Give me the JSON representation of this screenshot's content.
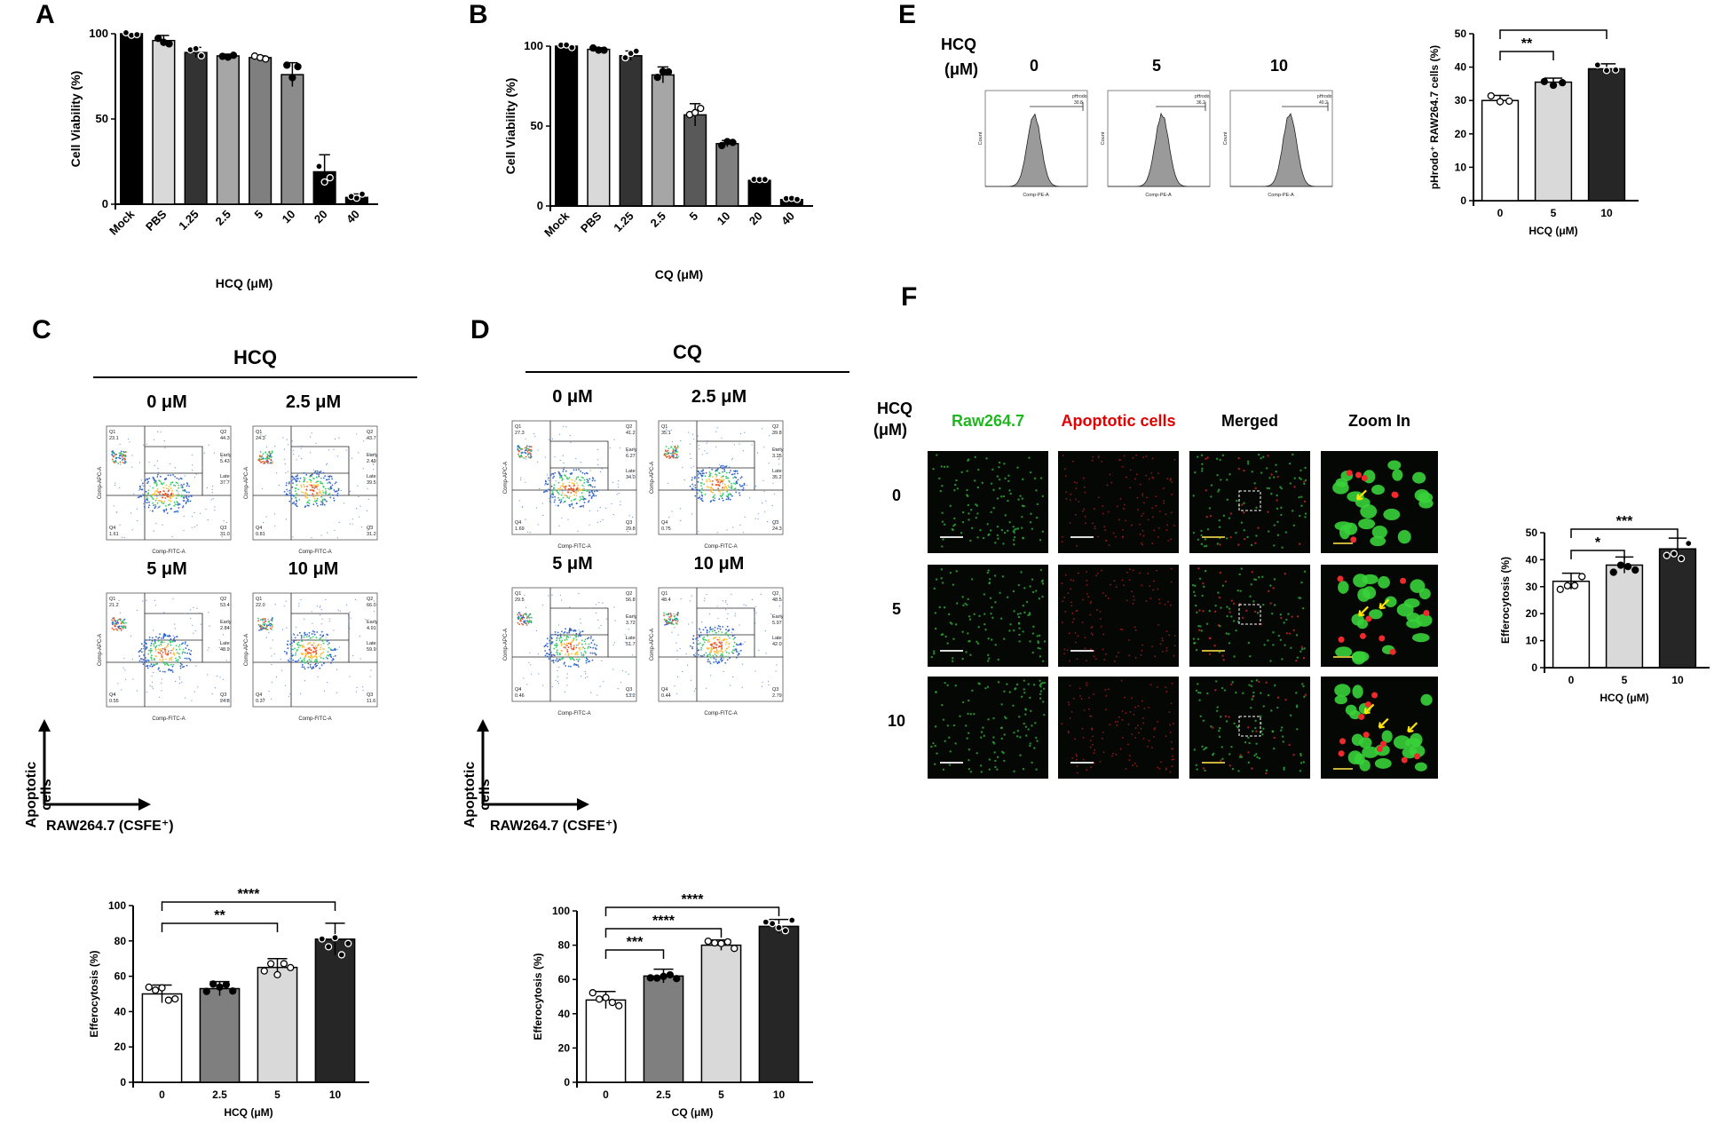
{
  "panels": {
    "A": {
      "letter": "A"
    },
    "B": {
      "letter": "B"
    },
    "C": {
      "letter": "C"
    },
    "D": {
      "letter": "D"
    },
    "E": {
      "letter": "E"
    },
    "F": {
      "letter": "F"
    }
  },
  "chart_data": [
    {
      "id": "A",
      "type": "bar",
      "categories": [
        "Mock",
        "PBS",
        "1.25",
        "2.5",
        "5",
        "10",
        "20",
        "40"
      ],
      "values": [
        100,
        96,
        89,
        87,
        86,
        76,
        19,
        4
      ],
      "errors": [
        0,
        3,
        3,
        1,
        1,
        7,
        10,
        2
      ],
      "colors": [
        "#000000",
        "#d9d9d9",
        "#333333",
        "#a6a6a6",
        "#7f7f7f",
        "#8c8c8c",
        "#000000",
        "#000000"
      ],
      "xlabel": "HCQ (μM)",
      "ylabel": "Cell Viability (%)",
      "ylim": [
        0,
        100
      ],
      "yticks": [
        0,
        50,
        100
      ]
    },
    {
      "id": "B",
      "type": "bar",
      "categories": [
        "Mock",
        "PBS",
        "1.25",
        "2.5",
        "5",
        "10",
        "20",
        "40"
      ],
      "values": [
        100,
        98,
        94,
        82,
        57,
        39,
        16,
        4
      ],
      "errors": [
        0,
        1,
        3,
        5,
        7,
        2,
        1,
        1
      ],
      "colors": [
        "#000000",
        "#d9d9d9",
        "#333333",
        "#a6a6a6",
        "#595959",
        "#7f7f7f",
        "#000000",
        "#000000"
      ],
      "xlabel": "CQ (μM)",
      "ylabel": "Cell Viability (%)",
      "ylim": [
        0,
        100
      ],
      "yticks": [
        0,
        50,
        100
      ]
    },
    {
      "id": "E",
      "type": "bar",
      "categories": [
        "0",
        "5",
        "10"
      ],
      "values": [
        30,
        35.5,
        39.5
      ],
      "errors": [
        1.5,
        1.2,
        1.5
      ],
      "colors": [
        "#ffffff",
        "#d9d9d9",
        "#262626"
      ],
      "xlabel": "HCQ (μM)",
      "ylabel": "pHrodo⁺ RAW264.7 cells (%)",
      "ylim": [
        0,
        50
      ],
      "yticks": [
        0,
        10,
        20,
        30,
        40,
        50
      ],
      "significance": [
        {
          "from": 0,
          "to": 1,
          "label": "**"
        },
        {
          "from": 0,
          "to": 2,
          "label": "***"
        }
      ]
    },
    {
      "id": "F",
      "type": "bar",
      "categories": [
        "0",
        "5",
        "10"
      ],
      "values": [
        32,
        38,
        44
      ],
      "errors": [
        3,
        3,
        4
      ],
      "colors": [
        "#ffffff",
        "#d9d9d9",
        "#262626"
      ],
      "xlabel": "HCQ (μM)",
      "ylabel": "Efferocytosis (%)",
      "ylim": [
        0,
        50
      ],
      "yticks": [
        0,
        10,
        20,
        30,
        40,
        50
      ],
      "significance": [
        {
          "from": 0,
          "to": 1,
          "label": "*"
        },
        {
          "from": 0,
          "to": 2,
          "label": "***"
        }
      ]
    },
    {
      "id": "C",
      "type": "bar",
      "categories": [
        "0",
        "2.5",
        "5",
        "10"
      ],
      "values": [
        50,
        53,
        65,
        81
      ],
      "errors": [
        5,
        4,
        5,
        9
      ],
      "colors": [
        "#ffffff",
        "#7f7f7f",
        "#d9d9d9",
        "#262626"
      ],
      "xlabel": "HCQ (μM)",
      "ylabel": "Efferocytosis (%)",
      "ylim": [
        0,
        100
      ],
      "yticks": [
        0,
        20,
        40,
        60,
        80,
        100
      ],
      "significance": [
        {
          "from": 0,
          "to": 2,
          "label": "**"
        },
        {
          "from": 0,
          "to": 3,
          "label": "****"
        }
      ]
    },
    {
      "id": "D",
      "type": "bar",
      "categories": [
        "0",
        "2.5",
        "5",
        "10"
      ],
      "values": [
        48,
        62,
        80,
        91
      ],
      "errors": [
        5,
        4,
        3,
        4
      ],
      "colors": [
        "#ffffff",
        "#7f7f7f",
        "#d9d9d9",
        "#262626"
      ],
      "xlabel": "CQ (μM)",
      "ylabel": "Efferocytosis (%)",
      "ylim": [
        0,
        100
      ],
      "yticks": [
        0,
        20,
        40,
        60,
        80,
        100
      ],
      "significance": [
        {
          "from": 0,
          "to": 1,
          "label": "***"
        },
        {
          "from": 0,
          "to": 2,
          "label": "****"
        },
        {
          "from": 0,
          "to": 3,
          "label": "****"
        }
      ]
    }
  ],
  "flowC": {
    "drug": "HCQ",
    "plots": [
      {
        "conc": "0 μM",
        "q1": "23.1",
        "q2": "44.3",
        "early": "5.43",
        "late": "37.7",
        "q3": "31.0",
        "q4": "1.61"
      },
      {
        "conc": "2.5 μM",
        "q1": "24.3",
        "q2": "43.7",
        "early": "2.49",
        "late": "39.5",
        "q3": "31.2",
        "q4": "0.81"
      },
      {
        "conc": "5 μM",
        "q1": "21.2",
        "q2": "53.4",
        "early": "2.84",
        "late": "48.9",
        "q3": "24.8",
        "q4": "0.55"
      },
      {
        "conc": "10 μM",
        "q1": "22.0",
        "q2": "66.0",
        "early": "4.91",
        "late": "59.9",
        "q3": "11.6",
        "q4": "0.37"
      }
    ],
    "axis_y": "Apoptotic cells",
    "axis_x": "RAW264.7 (CSFE⁺)"
  },
  "flowD": {
    "drug": "CQ",
    "plots": [
      {
        "conc": "0 μM",
        "q1": "27.3",
        "q2": "41.2",
        "early": "6.27",
        "late": "34.0",
        "q3": "29.8",
        "q4": "1.69"
      },
      {
        "conc": "2.5 μM",
        "q1": "35.1",
        "q2": "39.8",
        "early": "3.25",
        "late": "35.2",
        "q3": "24.3",
        "q4": "0.75"
      },
      {
        "conc": "5 μM",
        "q1": "29.5",
        "q2": "56.8",
        "early": "3.72",
        "late": "51.7",
        "q3": "13.2",
        "q4": "0.46"
      },
      {
        "conc": "10 μM",
        "q1": "48.4",
        "q2": "48.5",
        "early": "5.97",
        "late": "42.0",
        "q3": "2.79",
        "q4": "0.44"
      }
    ],
    "axis_y": "Apoptotic cells",
    "axis_x": "RAW264.7 (CSFE⁺)"
  },
  "flow_common": {
    "q1": "Q1",
    "q2": "Q2",
    "q3": "Q3",
    "q4": "Q4",
    "early": "Early",
    "late": "Late",
    "x_axis": "Comp-FITC-A",
    "y_axis": "Comp-APC-A"
  },
  "histE": {
    "hcq": "HCQ",
    "um": "(μM)",
    "concs": [
      "0",
      "5",
      "10"
    ],
    "gate": "pHrodo",
    "values": [
      "30.8",
      "36.2",
      "40.2"
    ],
    "x_axis": "Comp-PE-A",
    "y_axis": "Count"
  },
  "microF": {
    "hcq": "HCQ",
    "um": "(μM)",
    "columns": [
      "Raw264.7",
      "Apoptotic cells",
      "Merged",
      "Zoom In"
    ],
    "rows": [
      "0",
      "5",
      "10"
    ]
  }
}
